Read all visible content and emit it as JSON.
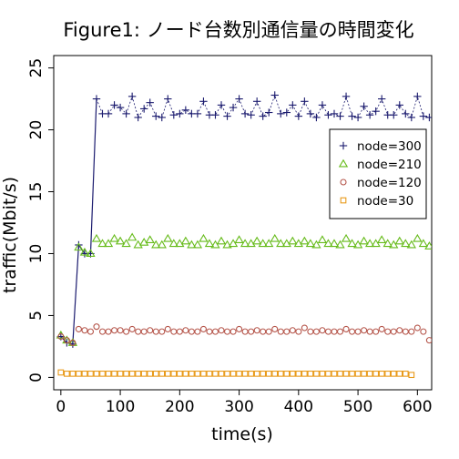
{
  "chart_data": {
    "type": "line",
    "title": "Figure1: ノード台数別通信量の時間変化",
    "xlabel": "time(s)",
    "ylabel": "traffic(Mbit/s)",
    "xlim": [
      -12,
      624
    ],
    "ylim": [
      -1,
      26
    ],
    "x_ticks": [
      0,
      100,
      200,
      300,
      400,
      500,
      600
    ],
    "y_ticks": [
      0,
      5,
      10,
      15,
      20,
      25
    ],
    "x_tick_labels": [
      "0",
      "100",
      "200",
      "300",
      "400",
      "500",
      "600"
    ],
    "y_tick_labels": [
      "0",
      "5",
      "10",
      "15",
      "20",
      "25"
    ],
    "legend_position": "right",
    "x": [
      0,
      10,
      20,
      30,
      40,
      50,
      60,
      70,
      80,
      90,
      100,
      110,
      120,
      130,
      140,
      150,
      160,
      170,
      180,
      190,
      200,
      210,
      220,
      230,
      240,
      250,
      260,
      270,
      280,
      290,
      300,
      310,
      320,
      330,
      340,
      350,
      360,
      370,
      380,
      390,
      400,
      410,
      420,
      430,
      440,
      450,
      460,
      470,
      480,
      490,
      500,
      510,
      520,
      530,
      540,
      550,
      560,
      570,
      580,
      590,
      600,
      610,
      620
    ],
    "series": [
      {
        "name": "node=300",
        "marker": "plus",
        "color": "#1a1a6e",
        "values": [
          3.3,
          2.8,
          2.7,
          10.7,
          10.0,
          10.0,
          22.5,
          21.3,
          21.3,
          22.0,
          21.8,
          21.3,
          22.7,
          21.0,
          21.7,
          22.2,
          21.1,
          21.0,
          22.5,
          21.2,
          21.3,
          21.6,
          21.3,
          21.3,
          22.3,
          21.2,
          21.2,
          22.0,
          21.1,
          21.8,
          22.5,
          21.3,
          21.2,
          22.3,
          21.1,
          21.4,
          22.8,
          21.3,
          21.4,
          22.0,
          21.1,
          22.3,
          21.3,
          21.0,
          22.0,
          21.2,
          21.3,
          21.1,
          22.7,
          21.1,
          21.0,
          21.9,
          21.2,
          21.5,
          22.5,
          21.2,
          21.2,
          22.0,
          21.3,
          21.0,
          22.7,
          21.1,
          21.0
        ]
      },
      {
        "name": "node=210",
        "marker": "triangle",
        "color": "#66bb1a",
        "values": [
          3.4,
          3.0,
          2.8,
          10.5,
          10.1,
          10.0,
          11.2,
          10.8,
          10.8,
          11.2,
          11.0,
          10.8,
          11.3,
          10.7,
          10.9,
          11.1,
          10.7,
          10.7,
          11.2,
          10.8,
          10.8,
          11.0,
          10.7,
          10.7,
          11.2,
          10.8,
          10.7,
          11.0,
          10.7,
          10.8,
          11.1,
          10.8,
          10.8,
          11.0,
          10.8,
          10.8,
          11.2,
          10.8,
          10.8,
          11.0,
          10.8,
          11.0,
          10.8,
          10.7,
          11.1,
          10.8,
          10.8,
          10.7,
          11.2,
          10.8,
          10.7,
          11.0,
          10.8,
          10.8,
          11.1,
          10.8,
          10.7,
          11.0,
          10.8,
          10.7,
          11.2,
          10.8,
          10.6
        ]
      },
      {
        "name": "node=120",
        "marker": "circle",
        "color": "#b5554a",
        "values": [
          3.3,
          3.0,
          2.8,
          3.9,
          3.8,
          3.7,
          4.1,
          3.7,
          3.7,
          3.8,
          3.8,
          3.7,
          3.9,
          3.7,
          3.7,
          3.8,
          3.7,
          3.7,
          3.9,
          3.7,
          3.7,
          3.8,
          3.7,
          3.7,
          3.9,
          3.7,
          3.7,
          3.8,
          3.7,
          3.7,
          3.9,
          3.7,
          3.7,
          3.8,
          3.7,
          3.7,
          3.9,
          3.7,
          3.7,
          3.8,
          3.7,
          4.0,
          3.7,
          3.7,
          3.8,
          3.7,
          3.7,
          3.7,
          3.9,
          3.7,
          3.7,
          3.8,
          3.7,
          3.7,
          3.9,
          3.7,
          3.7,
          3.8,
          3.7,
          3.7,
          4.0,
          3.7,
          3.0
        ]
      },
      {
        "name": "node=30",
        "marker": "square",
        "color": "#e89a1a",
        "values": [
          0.4,
          0.3,
          0.3,
          0.3,
          0.3,
          0.3,
          0.3,
          0.3,
          0.3,
          0.3,
          0.3,
          0.3,
          0.3,
          0.3,
          0.3,
          0.3,
          0.3,
          0.3,
          0.3,
          0.3,
          0.3,
          0.3,
          0.3,
          0.3,
          0.3,
          0.3,
          0.3,
          0.3,
          0.3,
          0.3,
          0.3,
          0.3,
          0.3,
          0.3,
          0.3,
          0.3,
          0.3,
          0.3,
          0.3,
          0.3,
          0.3,
          0.3,
          0.3,
          0.3,
          0.3,
          0.3,
          0.3,
          0.3,
          0.3,
          0.3,
          0.3,
          0.3,
          0.3,
          0.3,
          0.3,
          0.3,
          0.3,
          0.3,
          0.3,
          0.2,
          null,
          null,
          null
        ]
      }
    ],
    "connecting_line": {
      "color": "#1a1a6e",
      "x": [
        0,
        10,
        20,
        30,
        40,
        50,
        60
      ],
      "values": [
        3.3,
        2.8,
        2.7,
        10.7,
        10.0,
        10.0,
        22.5
      ]
    }
  }
}
